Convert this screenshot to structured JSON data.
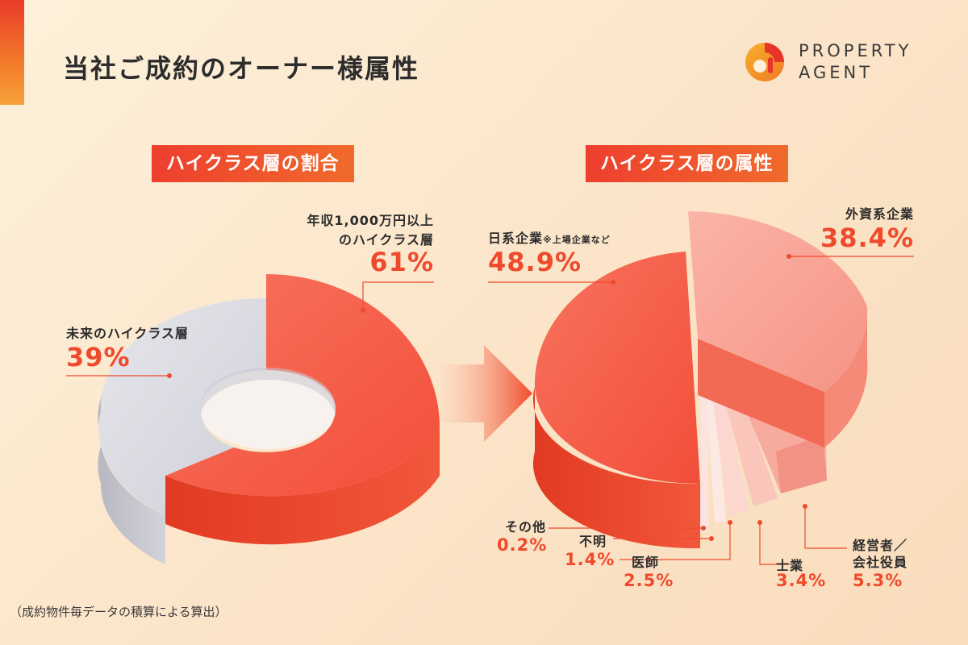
{
  "title": "当社ご成約のオーナー様属性",
  "logo": {
    "line1": "PROPERTY",
    "line2": "AGENT"
  },
  "footnote": "（成約物件毎データの積算による算出）",
  "colors": {
    "accent": "#ef4a2c",
    "grey": "#d4d4dc",
    "peach": "#f8a196"
  },
  "chart_data": [
    {
      "type": "pie",
      "variant": "3d-donut",
      "title": "ハイクラス層の割合",
      "slices": [
        {
          "name": "年収1,000万円以上のハイクラス層",
          "line1": "年収1,000万円以上",
          "line2": "のハイクラス層",
          "value": 61,
          "label": "61%"
        },
        {
          "name": "未来のハイクラス層",
          "value": 39,
          "label": "39%"
        }
      ]
    },
    {
      "type": "pie",
      "variant": "3d-exploded",
      "title": "ハイクラス層の属性",
      "slices": [
        {
          "name": "日系企業",
          "note": "※上場企業など",
          "value": 48.9,
          "label": "48.9%"
        },
        {
          "name": "外資系企業",
          "value": 38.4,
          "label": "38.4%"
        },
        {
          "name": "経営者／会社役員",
          "line1": "経営者／",
          "line2": "会社役員",
          "value": 5.3,
          "label": "5.3%"
        },
        {
          "name": "士業",
          "value": 3.4,
          "label": "3.4%"
        },
        {
          "name": "医師",
          "value": 2.5,
          "label": "2.5%"
        },
        {
          "name": "不明",
          "value": 1.4,
          "label": "1.4%"
        },
        {
          "name": "その他",
          "value": 0.2,
          "label": "0.2%"
        }
      ]
    }
  ]
}
